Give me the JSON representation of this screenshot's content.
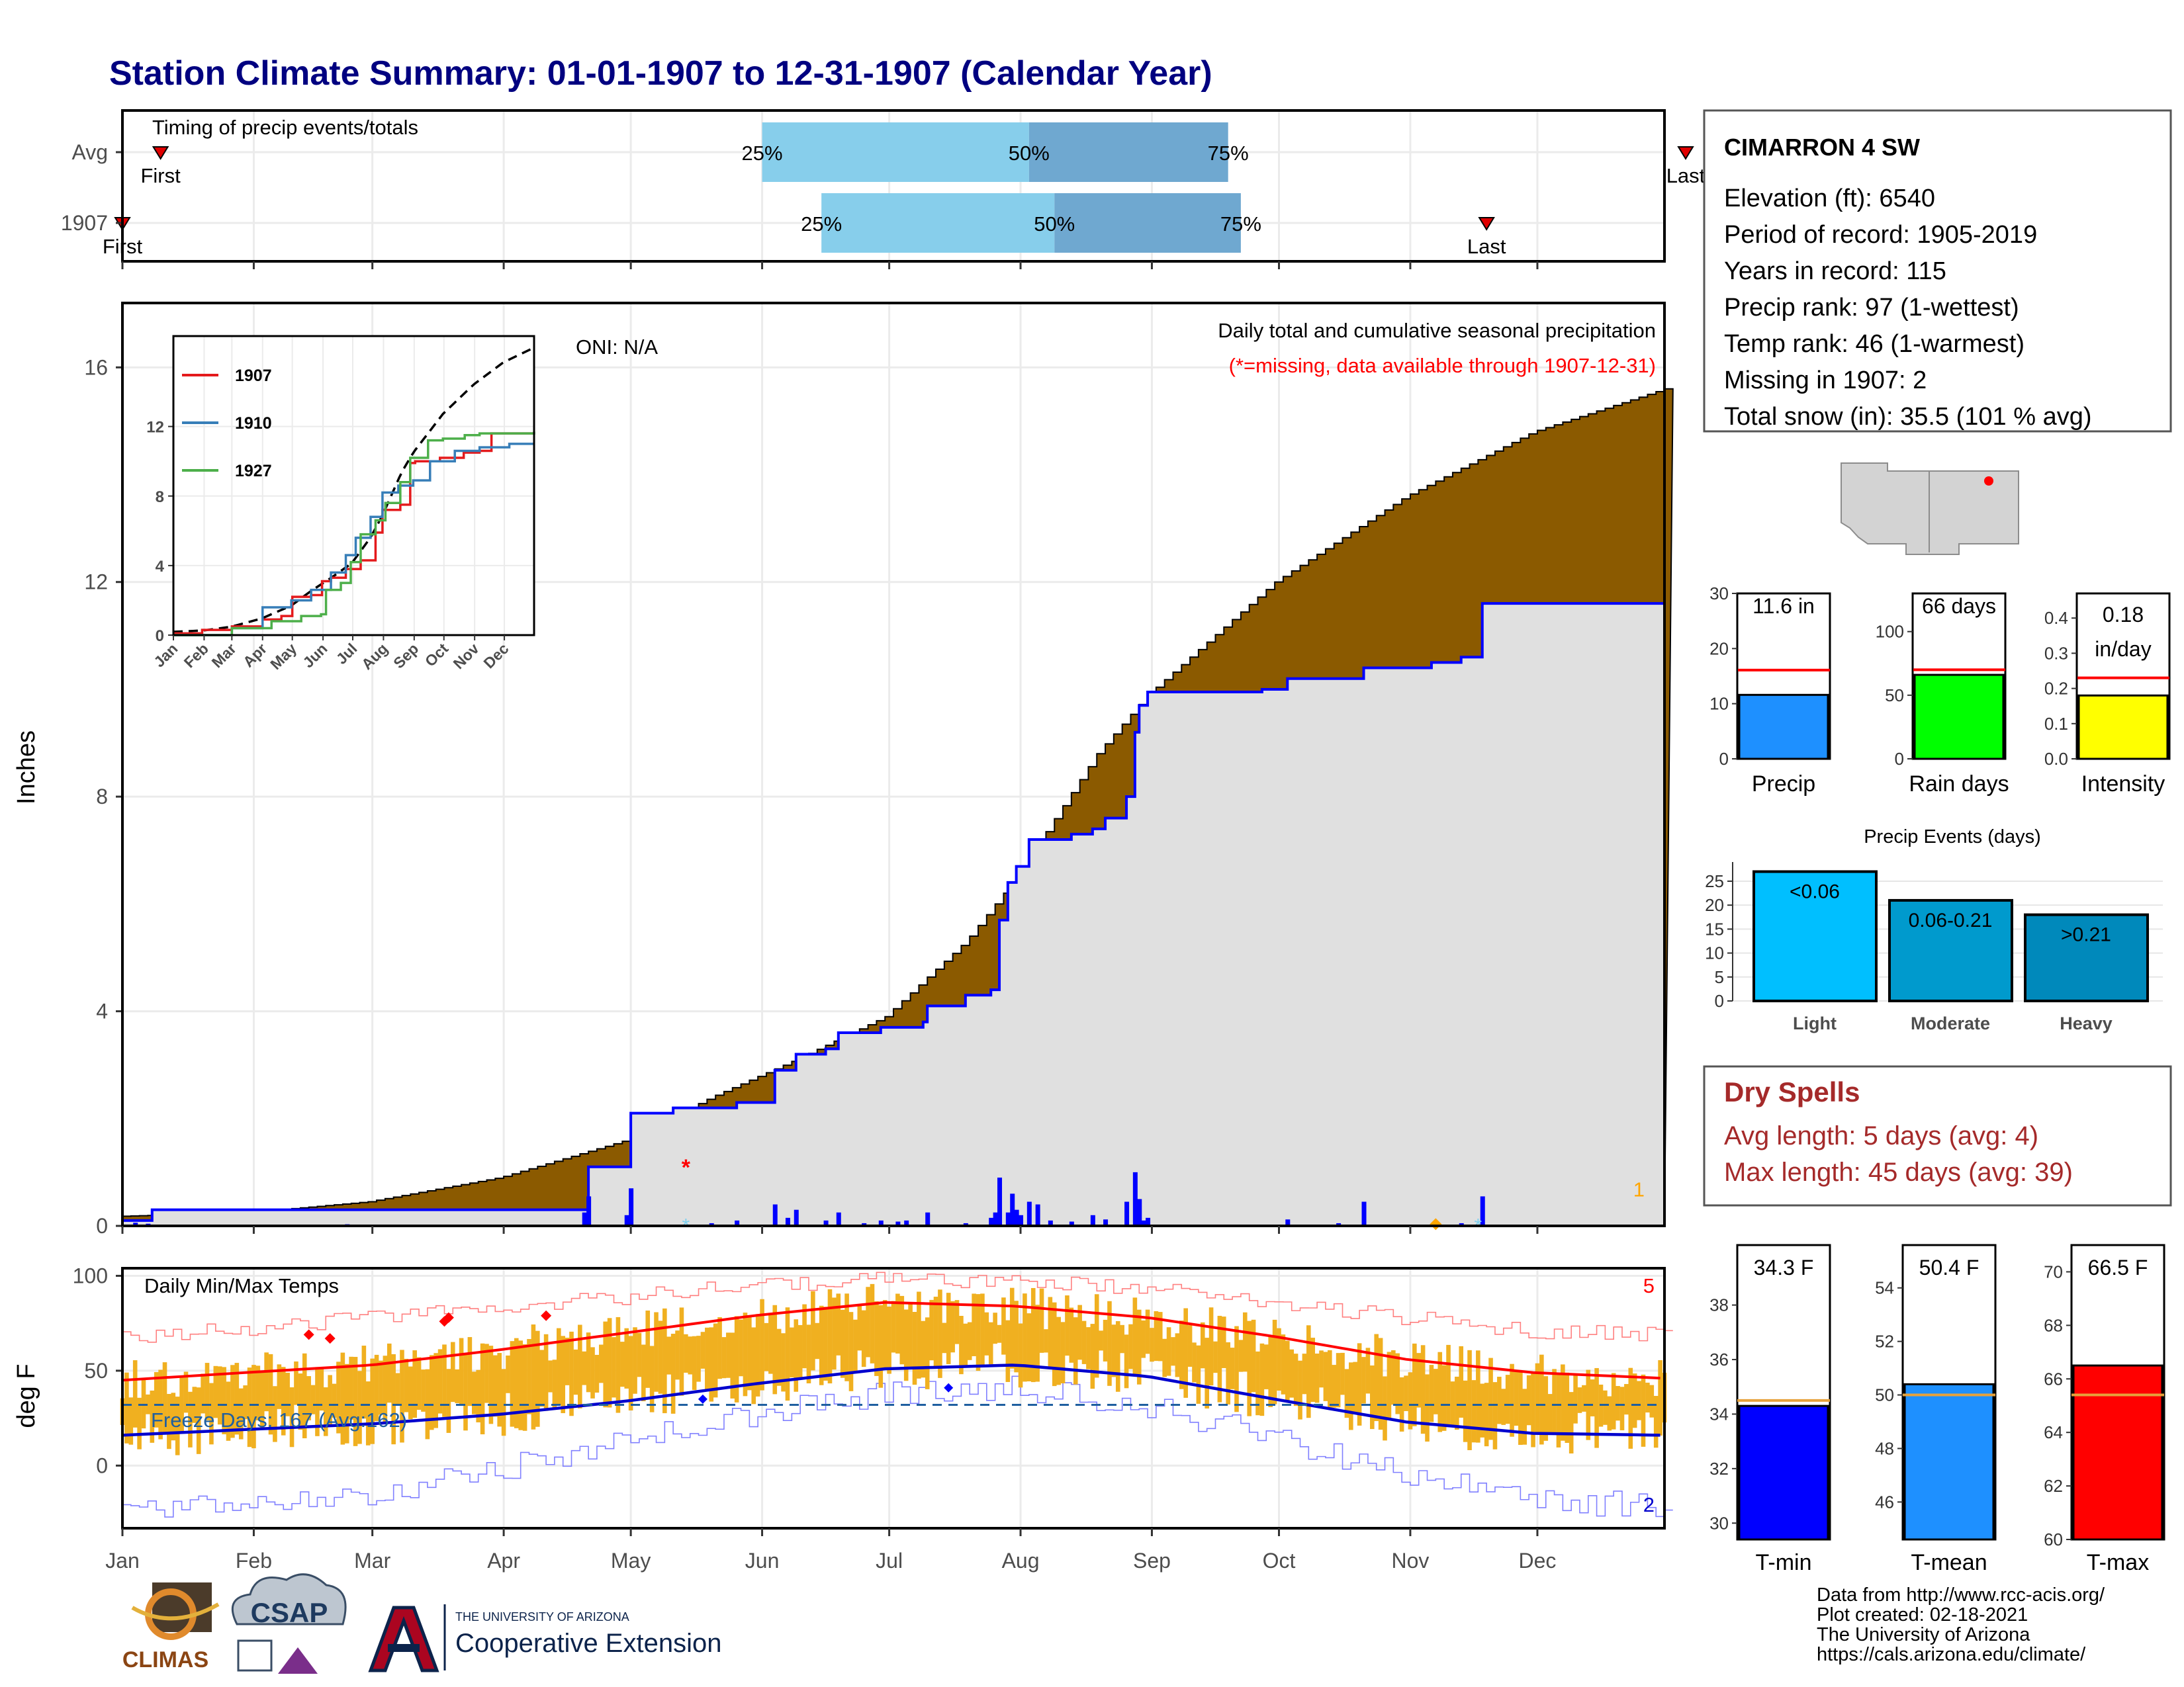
{
  "title": "Station Climate Summary: 01-01-1907 to 12-31-1907 (Calendar Year)",
  "months": [
    "Jan",
    "Feb",
    "Mar",
    "Apr",
    "May",
    "Jun",
    "Jul",
    "Aug",
    "Sep",
    "Oct",
    "Nov",
    "Dec"
  ],
  "timing": {
    "label": "Timing of precip events/totals",
    "rows": [
      {
        "name": "Avg",
        "q25": "25%",
        "q50": "50%",
        "q75": "75%",
        "q25_day": 152,
        "q50_day": 215,
        "q75_day": 262,
        "first_day": 10,
        "last_day": 370,
        "first_label": "First",
        "last_label": "Last"
      },
      {
        "name": "1907",
        "q25": "25%",
        "q50": "50%",
        "q75": "75%",
        "q25_day": 166,
        "q50_day": 221,
        "q75_day": 265,
        "first_day": 1,
        "last_day": 323,
        "first_label": "First",
        "last_label": "Last"
      }
    ]
  },
  "precip": {
    "ylabel": "Inches",
    "ylim": [
      0,
      17.2
    ],
    "yticks": [
      "0",
      "4",
      "8",
      "12",
      "16"
    ],
    "oni": "ONI: N/A",
    "subtitle": "Daily total and cumulative seasonal precipitation",
    "missing_note": "(*=missing, data available through 1907-12-31)",
    "corner_count": "1",
    "normal_cumulative": [
      [
        1,
        0.18
      ],
      [
        31,
        0.25
      ],
      [
        59,
        0.45
      ],
      [
        90,
        0.9
      ],
      [
        120,
        1.6
      ],
      [
        140,
        2.4
      ],
      [
        160,
        3.1
      ],
      [
        181,
        3.9
      ],
      [
        200,
        5.3
      ],
      [
        212,
        6.5
      ],
      [
        231,
        8.8
      ],
      [
        243,
        9.9
      ],
      [
        273,
        12.0
      ],
      [
        304,
        13.6
      ],
      [
        334,
        14.8
      ],
      [
        365,
        15.6
      ]
    ],
    "observed_cumulative": [
      [
        1,
        0.1
      ],
      [
        8,
        0.3
      ],
      [
        110,
        0.3
      ],
      [
        111,
        1.1
      ],
      [
        120,
        1.1
      ],
      [
        121,
        2.1
      ],
      [
        130,
        2.1
      ],
      [
        131,
        2.2
      ],
      [
        145,
        2.2
      ],
      [
        146,
        2.3
      ],
      [
        154,
        2.3
      ],
      [
        155,
        2.9
      ],
      [
        159,
        2.9
      ],
      [
        160,
        3.2
      ],
      [
        167,
        3.3
      ],
      [
        170,
        3.6
      ],
      [
        180,
        3.7
      ],
      [
        190,
        3.8
      ],
      [
        191,
        4.1
      ],
      [
        200,
        4.3
      ],
      [
        206,
        4.4
      ],
      [
        208,
        5.7
      ],
      [
        210,
        6.4
      ],
      [
        212,
        6.7
      ],
      [
        215,
        7.2
      ],
      [
        225,
        7.3
      ],
      [
        230,
        7.4
      ],
      [
        233,
        7.6
      ],
      [
        238,
        8.0
      ],
      [
        240,
        9.2
      ],
      [
        241,
        9.7
      ],
      [
        243,
        9.95
      ],
      [
        270,
        10.0
      ],
      [
        276,
        10.2
      ],
      [
        292,
        10.2
      ],
      [
        294,
        10.4
      ],
      [
        310,
        10.5
      ],
      [
        317,
        10.6
      ],
      [
        322,
        11.6
      ],
      [
        365,
        11.6
      ]
    ],
    "daily_bars": [
      [
        4,
        0.06
      ],
      [
        7,
        0.04
      ],
      [
        54,
        0.03
      ],
      [
        110,
        0.25
      ],
      [
        111,
        0.55
      ],
      [
        120,
        0.2
      ],
      [
        121,
        0.7
      ],
      [
        140,
        0.05
      ],
      [
        146,
        0.1
      ],
      [
        155,
        0.4
      ],
      [
        158,
        0.15
      ],
      [
        160,
        0.3
      ],
      [
        167,
        0.1
      ],
      [
        170,
        0.25
      ],
      [
        176,
        0.05
      ],
      [
        180,
        0.1
      ],
      [
        184,
        0.08
      ],
      [
        186,
        0.1
      ],
      [
        191,
        0.25
      ],
      [
        200,
        0.05
      ],
      [
        206,
        0.15
      ],
      [
        207,
        0.25
      ],
      [
        208,
        0.9
      ],
      [
        210,
        0.25
      ],
      [
        211,
        0.6
      ],
      [
        212,
        0.3
      ],
      [
        213,
        0.2
      ],
      [
        215,
        0.45
      ],
      [
        217,
        0.4
      ],
      [
        220,
        0.1
      ],
      [
        225,
        0.08
      ],
      [
        230,
        0.2
      ],
      [
        233,
        0.12
      ],
      [
        238,
        0.45
      ],
      [
        240,
        1.0
      ],
      [
        241,
        0.5
      ],
      [
        242,
        0.1
      ],
      [
        243,
        0.15
      ],
      [
        276,
        0.12
      ],
      [
        288,
        0.05
      ],
      [
        294,
        0.45
      ],
      [
        317,
        0.05
      ],
      [
        322,
        0.55
      ]
    ]
  },
  "inset": {
    "series": [
      {
        "name": "1907",
        "color": "#e41a1c",
        "values": [
          [
            1,
            0.1
          ],
          [
            30,
            0.3
          ],
          [
            60,
            0.5
          ],
          [
            91,
            0.9
          ],
          [
            110,
            1.1
          ],
          [
            121,
            2.2
          ],
          [
            140,
            2.3
          ],
          [
            151,
            3.1
          ],
          [
            160,
            3.3
          ],
          [
            175,
            3.8
          ],
          [
            190,
            4.3
          ],
          [
            205,
            5.9
          ],
          [
            212,
            7.2
          ],
          [
            230,
            7.5
          ],
          [
            240,
            9.9
          ],
          [
            245,
            10.0
          ],
          [
            270,
            10.2
          ],
          [
            294,
            10.5
          ],
          [
            310,
            10.6
          ],
          [
            322,
            11.6
          ],
          [
            365,
            11.6
          ]
        ]
      },
      {
        "name": "1910",
        "color": "#377eb8",
        "values": [
          [
            1,
            0.0
          ],
          [
            60,
            0.4
          ],
          [
            91,
            1.6
          ],
          [
            120,
            2.0
          ],
          [
            140,
            2.6
          ],
          [
            160,
            3.6
          ],
          [
            175,
            4.6
          ],
          [
            185,
            5.6
          ],
          [
            200,
            6.8
          ],
          [
            212,
            8.2
          ],
          [
            228,
            8.6
          ],
          [
            243,
            8.9
          ],
          [
            260,
            10.0
          ],
          [
            285,
            10.6
          ],
          [
            310,
            10.8
          ],
          [
            340,
            11.0
          ],
          [
            365,
            11.0
          ]
        ]
      },
      {
        "name": "1927",
        "color": "#4daf4a",
        "values": [
          [
            1,
            0.0
          ],
          [
            60,
            0.4
          ],
          [
            100,
            0.8
          ],
          [
            130,
            1.1
          ],
          [
            150,
            1.2
          ],
          [
            155,
            2.6
          ],
          [
            170,
            3.0
          ],
          [
            180,
            4.2
          ],
          [
            190,
            5.8
          ],
          [
            205,
            6.6
          ],
          [
            215,
            7.6
          ],
          [
            230,
            8.8
          ],
          [
            240,
            10.2
          ],
          [
            258,
            11.2
          ],
          [
            273,
            11.3
          ],
          [
            285,
            11.3
          ],
          [
            295,
            11.5
          ],
          [
            310,
            11.6
          ],
          [
            365,
            11.7
          ]
        ]
      }
    ],
    "normal_label": "",
    "yticks": [
      "0",
      "4",
      "8",
      "12"
    ],
    "ylim": [
      0,
      17.2
    ]
  },
  "temps": {
    "ylabel": "deg F",
    "label": "Daily Min/Max Temps",
    "freeze_label": "Freeze Days: 167 (Avg:162)",
    "ylim": [
      -33,
      104
    ],
    "yticks": [
      "0",
      "50",
      "100"
    ],
    "freeze_line": 32,
    "max_count": "5",
    "min_count": "2",
    "avg_max": [
      [
        1,
        45
      ],
      [
        30,
        49
      ],
      [
        60,
        53
      ],
      [
        90,
        61
      ],
      [
        120,
        70
      ],
      [
        150,
        79
      ],
      [
        181,
        86
      ],
      [
        212,
        84
      ],
      [
        243,
        78
      ],
      [
        273,
        68
      ],
      [
        304,
        56
      ],
      [
        334,
        49
      ],
      [
        365,
        46
      ]
    ],
    "avg_min": [
      [
        1,
        16
      ],
      [
        30,
        19
      ],
      [
        60,
        22
      ],
      [
        90,
        27
      ],
      [
        120,
        34
      ],
      [
        150,
        43
      ],
      [
        181,
        51
      ],
      [
        212,
        53
      ],
      [
        243,
        47
      ],
      [
        273,
        35
      ],
      [
        304,
        23
      ],
      [
        334,
        17
      ],
      [
        365,
        16
      ]
    ],
    "rec_max": [
      [
        1,
        68
      ],
      [
        30,
        72
      ],
      [
        60,
        78
      ],
      [
        90,
        84
      ],
      [
        120,
        89
      ],
      [
        150,
        95
      ],
      [
        181,
        98
      ],
      [
        212,
        97
      ],
      [
        243,
        94
      ],
      [
        273,
        86
      ],
      [
        304,
        78
      ],
      [
        334,
        71
      ],
      [
        365,
        69
      ]
    ],
    "rec_min": [
      [
        1,
        -22
      ],
      [
        30,
        -20
      ],
      [
        60,
        -14
      ],
      [
        90,
        -2
      ],
      [
        120,
        12
      ],
      [
        150,
        26
      ],
      [
        181,
        38
      ],
      [
        212,
        41
      ],
      [
        243,
        30
      ],
      [
        273,
        15
      ],
      [
        304,
        -6
      ],
      [
        334,
        -18
      ],
      [
        365,
        -22
      ]
    ]
  },
  "station": {
    "name": "CIMARRON 4 SW",
    "lines": [
      "Elevation (ft): 6540",
      "Period of record: 1905-2019",
      "Years in record: 115",
      "Precip rank: 97 (1-wettest)",
      "Temp rank: 46 (1-warmest)",
      "Missing in 1907: 2",
      "Total snow (in): 35.5 (101 % avg)"
    ]
  },
  "mini_bars": [
    {
      "name": "Precip",
      "value": 11.6,
      "label": "11.6 in",
      "avg": 16.1,
      "ymax": 30,
      "yticks": [
        "0",
        "10",
        "20",
        "30"
      ],
      "tick_vals": [
        0,
        10,
        20,
        30
      ],
      "color": "#1e90ff"
    },
    {
      "name": "Rain days",
      "value": 66,
      "label": "66 days",
      "avg": 70,
      "ymax": 130,
      "yticks": [
        "0",
        "50",
        "100"
      ],
      "tick_vals": [
        0,
        50,
        100
      ],
      "color": "#00ff00"
    },
    {
      "name": "Intensity",
      "value": 0.18,
      "label": "0.18",
      "label2": "in/day",
      "avg": 0.23,
      "ymax": 0.47,
      "yticks": [
        "0.0",
        "0.1",
        "0.2",
        "0.3",
        "0.4"
      ],
      "tick_vals": [
        0,
        0.1,
        0.2,
        0.3,
        0.4
      ],
      "color": "#ffff00"
    }
  ],
  "events": {
    "title": "Precip Events (days)",
    "categories": [
      "Light",
      "Moderate",
      "Heavy"
    ],
    "labels": [
      "<0.06",
      "0.06-0.21",
      ">0.21"
    ],
    "values": [
      27,
      21,
      18
    ],
    "yticks": [
      "0",
      "5",
      "10",
      "15",
      "20",
      "25"
    ],
    "colors": [
      "#00bfff",
      "#009acd",
      "#0089bb"
    ]
  },
  "dry_spells": {
    "title": "Dry Spells",
    "avg_line": "Avg length: 5 days (avg: 4)",
    "max_line": "Max length: 45 days (avg: 39)"
  },
  "temp_bars": [
    {
      "name": "T-min",
      "value": 34.3,
      "label": "34.3 F",
      "avg": 34.5,
      "ylim": [
        29.4,
        40.2
      ],
      "yticks": [
        "30",
        "32",
        "34",
        "36",
        "38"
      ],
      "tick_vals": [
        30,
        32,
        34,
        36,
        38
      ],
      "color": "#0000ff"
    },
    {
      "name": "T-mean",
      "value": 50.4,
      "label": "50.4 F",
      "avg": 50.0,
      "ylim": [
        44.6,
        55.6
      ],
      "yticks": [
        "46",
        "48",
        "50",
        "52",
        "54"
      ],
      "tick_vals": [
        46,
        48,
        50,
        52,
        54
      ],
      "color": "#1e90ff"
    },
    {
      "name": "T-max",
      "value": 66.5,
      "label": "66.5 F",
      "avg": 65.4,
      "ylim": [
        60,
        71
      ],
      "yticks": [
        "60",
        "62",
        "64",
        "66",
        "68",
        "70"
      ],
      "tick_vals": [
        60,
        62,
        64,
        66,
        68,
        70
      ],
      "color": "#ff0000"
    }
  ],
  "footer": {
    "lines": [
      "Data from http://www.rcc-acis.org/",
      "Plot created: 02-18-2021",
      "The University of Arizona",
      "https://cals.arizona.edu/climate/"
    ],
    "climas": "CLIMAS",
    "csap": "CSAP",
    "ua_small": "THE UNIVERSITY OF ARIZONA",
    "ua_big": "Cooperative Extension"
  },
  "colors": {
    "title": "#000080",
    "cumulative_fill": "#8b5a00",
    "observed_line": "#0000ff",
    "observed_fill": "#e0e0e0",
    "temp_bar": "#f0b020",
    "dry": "#a52a2a"
  }
}
